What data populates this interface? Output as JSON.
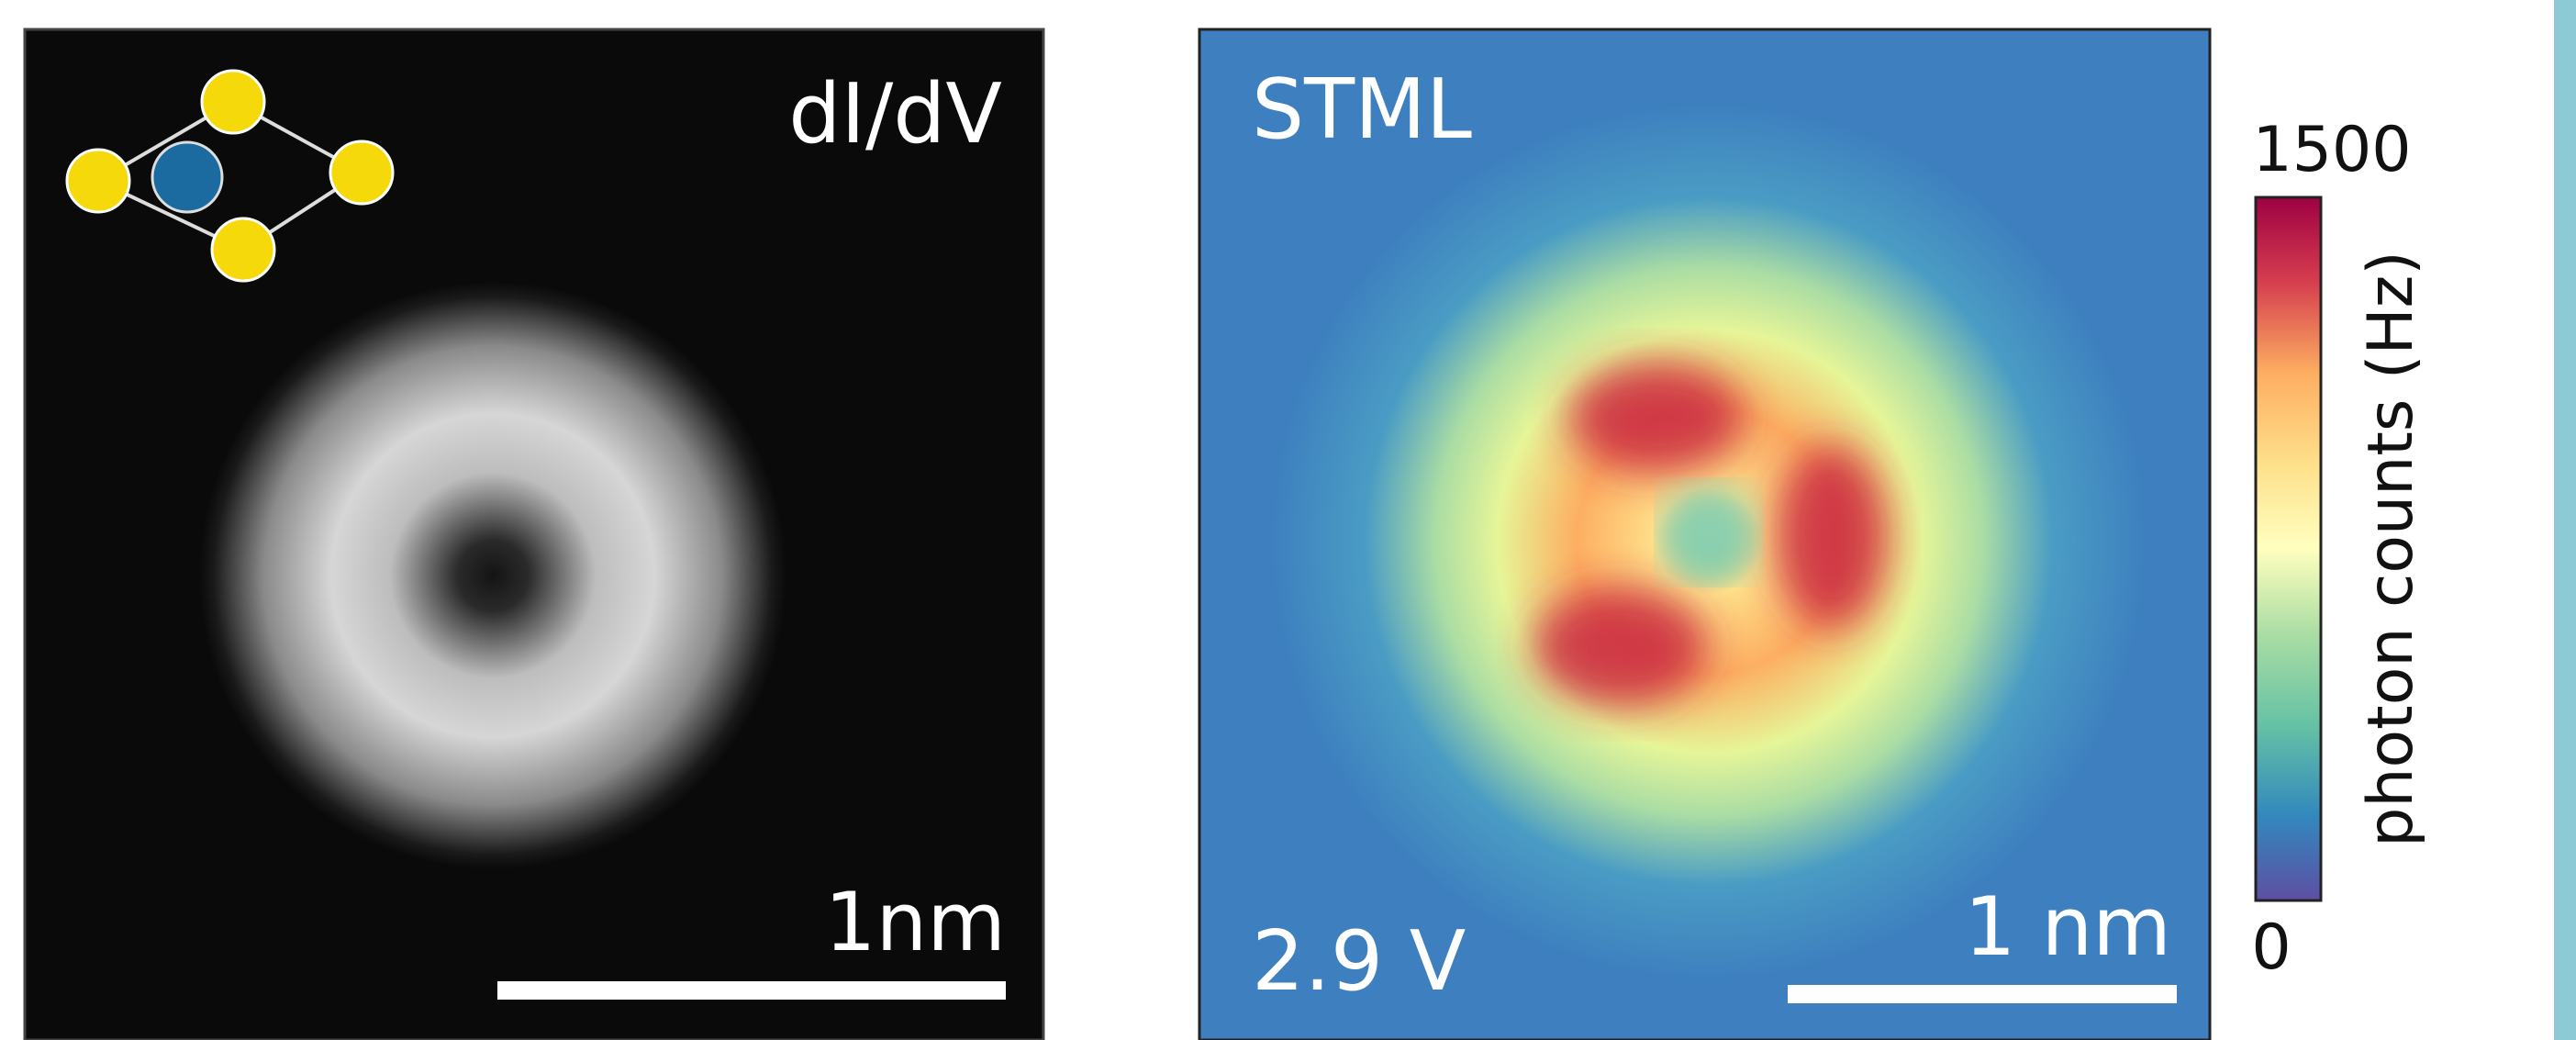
{
  "left_panel": {
    "label": "dI/dV",
    "scale_bar": "1nm"
  },
  "right_panel": {
    "label": "STML",
    "voltage": "2.9 V",
    "scale_bar": "1 nm"
  },
  "colorbar": {
    "max": 1500,
    "min": 0,
    "label": "photon counts (Hz)"
  }
}
